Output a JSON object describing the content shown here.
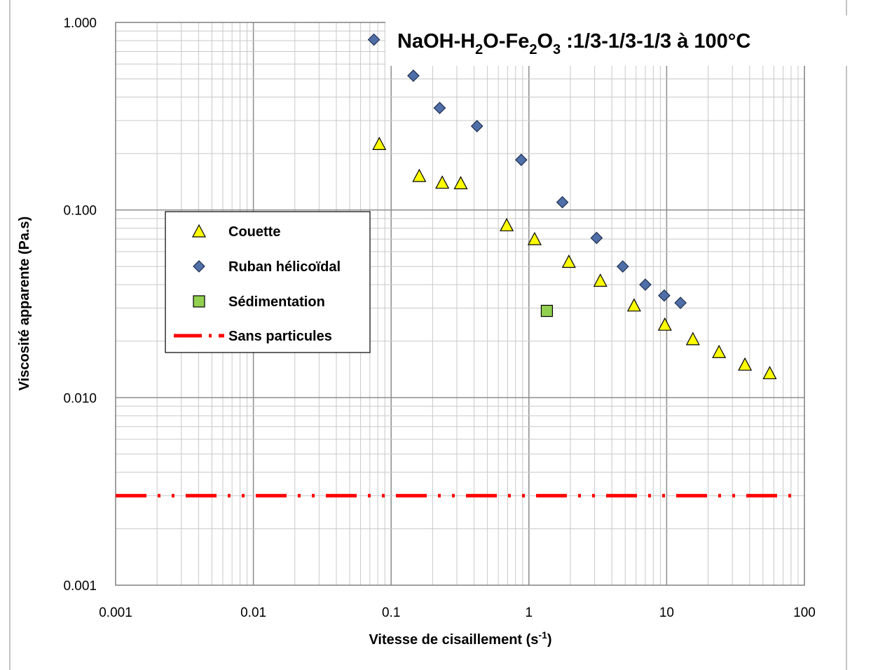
{
  "chart_data": {
    "type": "scatter",
    "title": "NaOH-H2O-Fe2O3 :1/3-1/3-1/3 à 100°C",
    "title_parts": {
      "t1": "NaOH-H",
      "s1": "2",
      "t2": "O-Fe",
      "s2": "2",
      "t3": "O",
      "s3": "3",
      "t4": " :1/3-1/3-1/3 à 100°C"
    },
    "xlabel": "Vitesse de cisaillement (s-1)",
    "xlabel_parts": {
      "main": "Vitesse de cisaillement (s",
      "sup": "-1",
      "end": ")"
    },
    "ylabel": "Viscosité apparente (Pa.s)",
    "x_scale": "log",
    "y_scale": "log",
    "xlim": [
      0.001,
      100
    ],
    "ylim": [
      0.001,
      1
    ],
    "x_ticks": [
      "0.001",
      "0.01",
      "0.1",
      "1",
      "10",
      "100"
    ],
    "y_ticks": [
      "0.001",
      "0.010",
      "0.100",
      "1.000"
    ],
    "grid": true,
    "legend_position": "left-middle",
    "series": [
      {
        "name": "Couette",
        "marker": "triangle",
        "color": "#ffff00",
        "x": [
          0.082,
          0.16,
          0.235,
          0.32,
          0.69,
          1.1,
          1.95,
          3.3,
          5.8,
          9.7,
          15.5,
          24,
          37,
          56
        ],
        "y": [
          0.225,
          0.152,
          0.14,
          0.139,
          0.083,
          0.07,
          0.053,
          0.042,
          0.031,
          0.0245,
          0.0205,
          0.0175,
          0.015,
          0.0135
        ]
      },
      {
        "name": "Ruban hélicoïdal",
        "marker": "diamond",
        "color": "#4f6fa8",
        "x": [
          0.075,
          0.145,
          0.225,
          0.42,
          0.88,
          1.75,
          3.1,
          4.8,
          7.0,
          9.6,
          12.6
        ],
        "y": [
          0.81,
          0.52,
          0.35,
          0.28,
          0.185,
          0.11,
          0.071,
          0.05,
          0.04,
          0.035,
          0.032
        ]
      },
      {
        "name": "Sédimentation",
        "marker": "square",
        "color": "#92d050",
        "x": [
          1.35
        ],
        "y": [
          0.029
        ]
      },
      {
        "name": "Sans particules",
        "marker": "line",
        "color": "#ff0000",
        "x": [
          0.001,
          85
        ],
        "y": [
          0.003,
          0.003
        ]
      }
    ]
  }
}
